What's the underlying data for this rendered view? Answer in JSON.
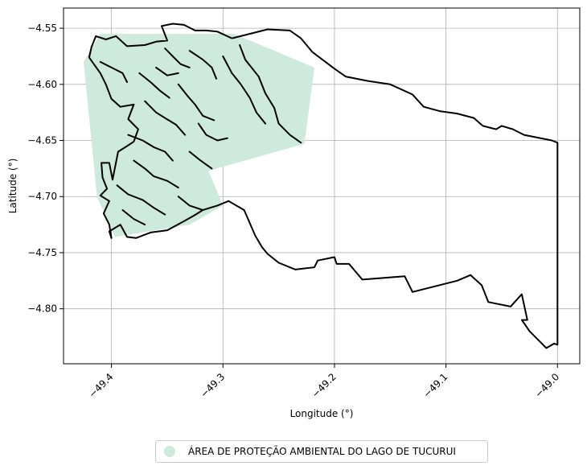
{
  "chart_data": {
    "type": "map",
    "xlabel": "Longitude (°)",
    "ylabel": "Latitude (°)",
    "xlim": [
      -49.443,
      -48.98
    ],
    "ylim": [
      -4.849,
      -4.532
    ],
    "xticks": [
      -49.4,
      -49.3,
      -49.2,
      -49.1,
      -49.0
    ],
    "xtick_labels": [
      "−49.4",
      "−49.3",
      "−49.2",
      "−49.1",
      "−49.0"
    ],
    "yticks": [
      -4.55,
      -4.6,
      -4.65,
      -4.7,
      -4.75,
      -4.8
    ],
    "ytick_labels": [
      "−4.55",
      "−4.60",
      "−4.65",
      "−4.70",
      "−4.75",
      "−4.80"
    ],
    "grid": true,
    "legend": {
      "placement": "bottom-center",
      "entries": [
        {
          "label": "ÁREA DE PROTEÇÃO AMBIENTAL DO LAGO DE TUCURUI",
          "color": "#cdeadc"
        }
      ]
    },
    "fill_polygon": [
      [
        -49.41,
        -4.555
      ],
      [
        -49.29,
        -4.555
      ],
      [
        -49.218,
        -4.585
      ],
      [
        -49.227,
        -4.653
      ],
      [
        -49.313,
        -4.677
      ],
      [
        -49.3,
        -4.708
      ],
      [
        -49.33,
        -4.725
      ],
      [
        -49.397,
        -4.736
      ],
      [
        -49.413,
        -4.7
      ],
      [
        -49.425,
        -4.58
      ]
    ],
    "boundary": [
      [
        -49.292,
        -4.559
      ],
      [
        -49.26,
        -4.551
      ],
      [
        -49.24,
        -4.552
      ],
      [
        -49.23,
        -4.559
      ],
      [
        -49.22,
        -4.571
      ],
      [
        -49.2,
        -4.586
      ],
      [
        -49.19,
        -4.593
      ],
      [
        -49.17,
        -4.597
      ],
      [
        -49.15,
        -4.6
      ],
      [
        -49.13,
        -4.609
      ],
      [
        -49.12,
        -4.62
      ],
      [
        -49.105,
        -4.624
      ],
      [
        -49.09,
        -4.626
      ],
      [
        -49.075,
        -4.63
      ],
      [
        -49.067,
        -4.637
      ],
      [
        -49.055,
        -4.64
      ],
      [
        -49.05,
        -4.637
      ],
      [
        -49.04,
        -4.64
      ],
      [
        -49.03,
        -4.645
      ],
      [
        -49.005,
        -4.65
      ],
      [
        -49.0,
        -4.652
      ],
      [
        -49.0,
        -4.832
      ],
      [
        -49.003,
        -4.831
      ],
      [
        -49.01,
        -4.835
      ],
      [
        -49.025,
        -4.82
      ],
      [
        -49.032,
        -4.81
      ],
      [
        -49.027,
        -4.81
      ],
      [
        -49.032,
        -4.787
      ],
      [
        -49.042,
        -4.798
      ],
      [
        -49.062,
        -4.794
      ],
      [
        -49.068,
        -4.779
      ],
      [
        -49.078,
        -4.77
      ],
      [
        -49.09,
        -4.775
      ],
      [
        -49.13,
        -4.785
      ],
      [
        -49.137,
        -4.771
      ],
      [
        -49.175,
        -4.774
      ],
      [
        -49.187,
        -4.76
      ],
      [
        -49.198,
        -4.76
      ],
      [
        -49.2,
        -4.754
      ],
      [
        -49.215,
        -4.757
      ],
      [
        -49.218,
        -4.763
      ],
      [
        -49.235,
        -4.765
      ],
      [
        -49.25,
        -4.759
      ],
      [
        -49.26,
        -4.751
      ],
      [
        -49.265,
        -4.745
      ],
      [
        -49.271,
        -4.735
      ],
      [
        -49.281,
        -4.712
      ],
      [
        -49.295,
        -4.704
      ],
      [
        -49.305,
        -4.708
      ],
      [
        -49.318,
        -4.712
      ],
      [
        -49.326,
        -4.717
      ],
      [
        -49.335,
        -4.722
      ],
      [
        -49.35,
        -4.73
      ],
      [
        -49.365,
        -4.732
      ],
      [
        -49.378,
        -4.737
      ],
      [
        -49.386,
        -4.736
      ],
      [
        -49.392,
        -4.725
      ],
      [
        -49.402,
        -4.731
      ],
      [
        -49.4,
        -4.737
      ],
      [
        -49.402,
        -4.725
      ],
      [
        -49.407,
        -4.715
      ],
      [
        -49.402,
        -4.704
      ],
      [
        -49.41,
        -4.699
      ],
      [
        -49.404,
        -4.693
      ],
      [
        -49.408,
        -4.683
      ],
      [
        -49.409,
        -4.67
      ],
      [
        -49.402,
        -4.67
      ],
      [
        -49.399,
        -4.685
      ],
      [
        -49.394,
        -4.66
      ],
      [
        -49.386,
        -4.655
      ],
      [
        -49.38,
        -4.651
      ],
      [
        -49.376,
        -4.64
      ],
      [
        -49.385,
        -4.631
      ],
      [
        -49.38,
        -4.618
      ],
      [
        -49.392,
        -4.62
      ],
      [
        -49.4,
        -4.613
      ],
      [
        -49.405,
        -4.6
      ],
      [
        -49.41,
        -4.59
      ],
      [
        -49.42,
        -4.576
      ],
      [
        -49.418,
        -4.567
      ],
      [
        -49.414,
        -4.557
      ],
      [
        -49.405,
        -4.56
      ],
      [
        -49.396,
        -4.557
      ],
      [
        -49.386,
        -4.566
      ],
      [
        -49.37,
        -4.565
      ],
      [
        -49.36,
        -4.562
      ],
      [
        -49.35,
        -4.561
      ],
      [
        -49.355,
        -4.548
      ],
      [
        -49.345,
        -4.546
      ],
      [
        -49.335,
        -4.547
      ],
      [
        -49.325,
        -4.552
      ],
      [
        -49.315,
        -4.552
      ],
      [
        -49.305,
        -4.553
      ],
      [
        -49.292,
        -4.559
      ]
    ],
    "inner_lines": [
      [
        [
          -49.285,
          -4.565
        ],
        [
          -49.28,
          -4.578
        ],
        [
          -49.268,
          -4.593
        ],
        [
          -49.262,
          -4.608
        ],
        [
          -49.254,
          -4.621
        ],
        [
          -49.25,
          -4.635
        ],
        [
          -49.24,
          -4.645
        ],
        [
          -49.23,
          -4.652
        ]
      ],
      [
        [
          -49.3,
          -4.575
        ],
        [
          -49.292,
          -4.59
        ],
        [
          -49.284,
          -4.6
        ],
        [
          -49.276,
          -4.612
        ],
        [
          -49.27,
          -4.625
        ],
        [
          -49.262,
          -4.635
        ]
      ],
      [
        [
          -49.33,
          -4.57
        ],
        [
          -49.318,
          -4.578
        ],
        [
          -49.31,
          -4.585
        ],
        [
          -49.306,
          -4.595
        ]
      ],
      [
        [
          -49.352,
          -4.568
        ],
        [
          -49.345,
          -4.575
        ],
        [
          -49.338,
          -4.582
        ],
        [
          -49.33,
          -4.585
        ]
      ],
      [
        [
          -49.375,
          -4.59
        ],
        [
          -49.365,
          -4.598
        ],
        [
          -49.356,
          -4.606
        ],
        [
          -49.348,
          -4.612
        ]
      ],
      [
        [
          -49.34,
          -4.6
        ],
        [
          -49.332,
          -4.61
        ],
        [
          -49.325,
          -4.618
        ],
        [
          -49.318,
          -4.628
        ],
        [
          -49.308,
          -4.632
        ]
      ],
      [
        [
          -49.37,
          -4.615
        ],
        [
          -49.36,
          -4.625
        ],
        [
          -49.352,
          -4.63
        ],
        [
          -49.342,
          -4.636
        ],
        [
          -49.334,
          -4.645
        ]
      ],
      [
        [
          -49.322,
          -4.635
        ],
        [
          -49.315,
          -4.645
        ],
        [
          -49.305,
          -4.65
        ],
        [
          -49.296,
          -4.648
        ]
      ],
      [
        [
          -49.385,
          -4.645
        ],
        [
          -49.372,
          -4.65
        ],
        [
          -49.362,
          -4.656
        ],
        [
          -49.352,
          -4.66
        ],
        [
          -49.345,
          -4.668
        ]
      ],
      [
        [
          -49.38,
          -4.668
        ],
        [
          -49.37,
          -4.675
        ],
        [
          -49.362,
          -4.682
        ],
        [
          -49.35,
          -4.686
        ],
        [
          -49.34,
          -4.692
        ]
      ],
      [
        [
          -49.33,
          -4.66
        ],
        [
          -49.32,
          -4.668
        ],
        [
          -49.31,
          -4.675
        ]
      ],
      [
        [
          -49.395,
          -4.69
        ],
        [
          -49.385,
          -4.698
        ],
        [
          -49.372,
          -4.703
        ],
        [
          -49.362,
          -4.71
        ],
        [
          -49.352,
          -4.716
        ]
      ],
      [
        [
          -49.34,
          -4.7
        ],
        [
          -49.33,
          -4.708
        ],
        [
          -49.318,
          -4.712
        ]
      ],
      [
        [
          -49.39,
          -4.712
        ],
        [
          -49.38,
          -4.72
        ],
        [
          -49.37,
          -4.725
        ]
      ],
      [
        [
          -49.41,
          -4.58
        ],
        [
          -49.4,
          -4.585
        ],
        [
          -49.39,
          -4.59
        ],
        [
          -49.386,
          -4.598
        ]
      ],
      [
        [
          -49.36,
          -4.585
        ],
        [
          -49.35,
          -4.592
        ],
        [
          -49.34,
          -4.59
        ]
      ]
    ]
  }
}
